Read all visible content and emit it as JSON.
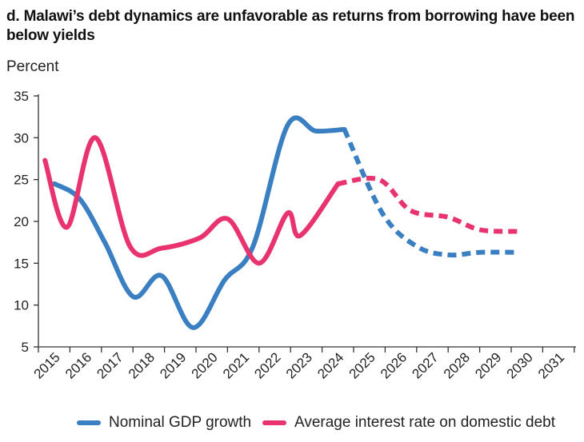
{
  "title": "d. Malawi’s debt dynamics are unfavorable as returns from borrowing have been below yields",
  "chart_data": {
    "type": "line",
    "ylabel": "Percent",
    "ylim": [
      5,
      35
    ],
    "yticks": [
      5,
      10,
      15,
      20,
      25,
      30,
      35
    ],
    "categories": [
      "2015",
      "2016",
      "2017",
      "2018",
      "2019",
      "2020",
      "2021",
      "2022",
      "2023",
      "2024",
      "2025",
      "2026",
      "2027",
      "2028",
      "2029",
      "2030",
      "2031"
    ],
    "projection_start": "2025",
    "legend_position": "bottom",
    "series": [
      {
        "name": "Nominal GDP growth",
        "color": "#3a7fc1",
        "points": [
          {
            "x": 2015,
            "y": 24.5
          },
          {
            "x": 2015.8,
            "y": 22.7
          },
          {
            "x": 2016.6,
            "y": 17.5
          },
          {
            "x": 2017.5,
            "y": 11.0
          },
          {
            "x": 2018.4,
            "y": 13.5
          },
          {
            "x": 2019.4,
            "y": 7.3
          },
          {
            "x": 2020.4,
            "y": 13.0
          },
          {
            "x": 2021.3,
            "y": 17.0
          },
          {
            "x": 2022.4,
            "y": 31.5
          },
          {
            "x": 2023.3,
            "y": 30.8
          },
          {
            "x": 2024.2,
            "y": 31.0
          },
          {
            "x": 2025.4,
            "y": 21.0
          },
          {
            "x": 2026.5,
            "y": 17.0
          },
          {
            "x": 2027.5,
            "y": 16.0
          },
          {
            "x": 2028.5,
            "y": 16.3
          },
          {
            "x": 2029.7,
            "y": 16.3
          }
        ]
      },
      {
        "name": "Average  interest rate on domestic debt",
        "color": "#e8336e",
        "points": [
          {
            "x": 2014.7,
            "y": 27.3
          },
          {
            "x": 2015.4,
            "y": 19.3
          },
          {
            "x": 2016.3,
            "y": 30.0
          },
          {
            "x": 2017.4,
            "y": 17.0
          },
          {
            "x": 2018.4,
            "y": 16.8
          },
          {
            "x": 2019.6,
            "y": 18.0
          },
          {
            "x": 2020.5,
            "y": 20.3
          },
          {
            "x": 2021.5,
            "y": 15.0
          },
          {
            "x": 2022.4,
            "y": 21.0
          },
          {
            "x": 2022.8,
            "y": 18.3
          },
          {
            "x": 2024.0,
            "y": 24.5
          },
          {
            "x": 2025.3,
            "y": 25.0
          },
          {
            "x": 2026.3,
            "y": 21.3
          },
          {
            "x": 2027.5,
            "y": 20.5
          },
          {
            "x": 2028.5,
            "y": 19.0
          },
          {
            "x": 2029.7,
            "y": 18.8
          }
        ]
      }
    ]
  }
}
